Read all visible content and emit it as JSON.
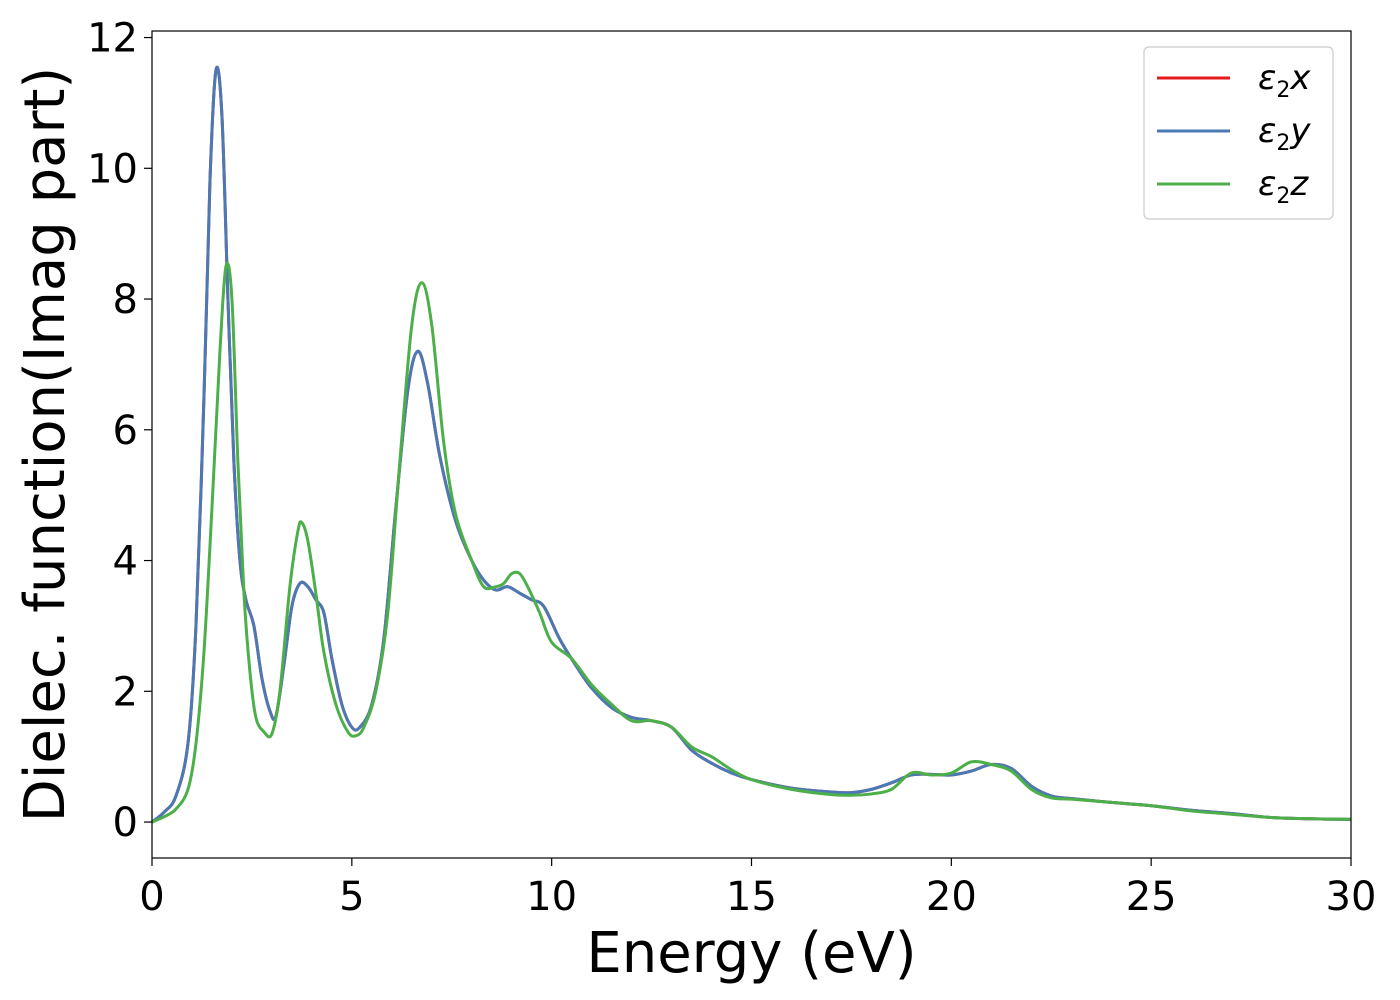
{
  "chart_data": {
    "type": "line",
    "xlabel": "Energy (eV)",
    "ylabel": "Dielec. function(Imag part)",
    "xlim": [
      0,
      30
    ],
    "ylim": [
      -0.55,
      12.1
    ],
    "xticks": [
      0,
      5,
      10,
      15,
      20,
      25,
      30
    ],
    "yticks": [
      0,
      2,
      4,
      6,
      8,
      10,
      12
    ],
    "grid": false,
    "legend_position": "top-right",
    "series": [
      {
        "name": "ε2x",
        "legend_main": "ε",
        "legend_sub": "2",
        "legend_tail": "x",
        "color": "#e41a1c",
        "points": [
          [
            0,
            0
          ],
          [
            0.3,
            0.15
          ],
          [
            0.6,
            0.4
          ],
          [
            0.9,
            1.2
          ],
          [
            1.1,
            3.0
          ],
          [
            1.3,
            6.5
          ],
          [
            1.45,
            9.8
          ],
          [
            1.6,
            11.5
          ],
          [
            1.75,
            10.8
          ],
          [
            1.9,
            8.0
          ],
          [
            2.05,
            5.5
          ],
          [
            2.2,
            4.0
          ],
          [
            2.35,
            3.4
          ],
          [
            2.55,
            3.0
          ],
          [
            2.75,
            2.2
          ],
          [
            2.95,
            1.7
          ],
          [
            3.1,
            1.62
          ],
          [
            3.3,
            2.4
          ],
          [
            3.5,
            3.3
          ],
          [
            3.7,
            3.65
          ],
          [
            3.9,
            3.6
          ],
          [
            4.1,
            3.4
          ],
          [
            4.3,
            3.2
          ],
          [
            4.5,
            2.5
          ],
          [
            4.75,
            1.8
          ],
          [
            5.0,
            1.45
          ],
          [
            5.2,
            1.45
          ],
          [
            5.5,
            1.8
          ],
          [
            5.8,
            2.8
          ],
          [
            6.1,
            4.8
          ],
          [
            6.4,
            6.6
          ],
          [
            6.65,
            7.2
          ],
          [
            6.9,
            6.7
          ],
          [
            7.2,
            5.6
          ],
          [
            7.6,
            4.6
          ],
          [
            8.0,
            4.0
          ],
          [
            8.3,
            3.7
          ],
          [
            8.6,
            3.55
          ],
          [
            8.9,
            3.6
          ],
          [
            9.2,
            3.5
          ],
          [
            9.5,
            3.4
          ],
          [
            9.8,
            3.3
          ],
          [
            10.2,
            2.8
          ],
          [
            10.6,
            2.4
          ],
          [
            11.0,
            2.05
          ],
          [
            11.5,
            1.75
          ],
          [
            12.0,
            1.6
          ],
          [
            12.5,
            1.55
          ],
          [
            13.0,
            1.45
          ],
          [
            13.5,
            1.1
          ],
          [
            14.0,
            0.9
          ],
          [
            14.5,
            0.75
          ],
          [
            15.0,
            0.65
          ],
          [
            16.0,
            0.52
          ],
          [
            17.0,
            0.46
          ],
          [
            17.5,
            0.45
          ],
          [
            18.0,
            0.5
          ],
          [
            18.5,
            0.6
          ],
          [
            19.0,
            0.72
          ],
          [
            19.5,
            0.73
          ],
          [
            20.0,
            0.72
          ],
          [
            20.5,
            0.78
          ],
          [
            21.0,
            0.88
          ],
          [
            21.5,
            0.82
          ],
          [
            22.0,
            0.55
          ],
          [
            22.5,
            0.4
          ],
          [
            23.0,
            0.36
          ],
          [
            24.0,
            0.3
          ],
          [
            25.0,
            0.25
          ],
          [
            26.0,
            0.18
          ],
          [
            27.0,
            0.13
          ],
          [
            28.0,
            0.07
          ],
          [
            29.0,
            0.05
          ],
          [
            30.0,
            0.04
          ]
        ]
      },
      {
        "name": "ε2y",
        "legend_main": "ε",
        "legend_sub": "2",
        "legend_tail": "y",
        "color": "#4a7ab5",
        "points": [
          [
            0,
            0
          ],
          [
            0.3,
            0.15
          ],
          [
            0.6,
            0.4
          ],
          [
            0.9,
            1.2
          ],
          [
            1.1,
            3.0
          ],
          [
            1.3,
            6.5
          ],
          [
            1.45,
            9.8
          ],
          [
            1.6,
            11.5
          ],
          [
            1.75,
            10.8
          ],
          [
            1.9,
            8.0
          ],
          [
            2.05,
            5.5
          ],
          [
            2.2,
            4.0
          ],
          [
            2.35,
            3.4
          ],
          [
            2.55,
            3.0
          ],
          [
            2.75,
            2.2
          ],
          [
            2.95,
            1.7
          ],
          [
            3.1,
            1.62
          ],
          [
            3.3,
            2.4
          ],
          [
            3.5,
            3.3
          ],
          [
            3.7,
            3.65
          ],
          [
            3.9,
            3.6
          ],
          [
            4.1,
            3.4
          ],
          [
            4.3,
            3.2
          ],
          [
            4.5,
            2.5
          ],
          [
            4.75,
            1.8
          ],
          [
            5.0,
            1.45
          ],
          [
            5.2,
            1.45
          ],
          [
            5.5,
            1.8
          ],
          [
            5.8,
            2.8
          ],
          [
            6.1,
            4.8
          ],
          [
            6.4,
            6.6
          ],
          [
            6.65,
            7.2
          ],
          [
            6.9,
            6.7
          ],
          [
            7.2,
            5.6
          ],
          [
            7.6,
            4.6
          ],
          [
            8.0,
            4.0
          ],
          [
            8.3,
            3.7
          ],
          [
            8.6,
            3.55
          ],
          [
            8.9,
            3.6
          ],
          [
            9.2,
            3.5
          ],
          [
            9.5,
            3.4
          ],
          [
            9.8,
            3.3
          ],
          [
            10.2,
            2.8
          ],
          [
            10.6,
            2.4
          ],
          [
            11.0,
            2.05
          ],
          [
            11.5,
            1.75
          ],
          [
            12.0,
            1.6
          ],
          [
            12.5,
            1.55
          ],
          [
            13.0,
            1.45
          ],
          [
            13.5,
            1.1
          ],
          [
            14.0,
            0.9
          ],
          [
            14.5,
            0.75
          ],
          [
            15.0,
            0.65
          ],
          [
            16.0,
            0.52
          ],
          [
            17.0,
            0.46
          ],
          [
            17.5,
            0.45
          ],
          [
            18.0,
            0.5
          ],
          [
            18.5,
            0.6
          ],
          [
            19.0,
            0.72
          ],
          [
            19.5,
            0.73
          ],
          [
            20.0,
            0.72
          ],
          [
            20.5,
            0.78
          ],
          [
            21.0,
            0.88
          ],
          [
            21.5,
            0.82
          ],
          [
            22.0,
            0.55
          ],
          [
            22.5,
            0.4
          ],
          [
            23.0,
            0.36
          ],
          [
            24.0,
            0.3
          ],
          [
            25.0,
            0.25
          ],
          [
            26.0,
            0.18
          ],
          [
            27.0,
            0.13
          ],
          [
            28.0,
            0.07
          ],
          [
            29.0,
            0.05
          ],
          [
            30.0,
            0.04
          ]
        ]
      },
      {
        "name": "ε2z",
        "legend_main": "ε",
        "legend_sub": "2",
        "legend_tail": "z",
        "color": "#4daf4a",
        "points": [
          [
            0,
            0
          ],
          [
            0.3,
            0.08
          ],
          [
            0.6,
            0.2
          ],
          [
            0.9,
            0.5
          ],
          [
            1.1,
            1.2
          ],
          [
            1.3,
            2.6
          ],
          [
            1.5,
            4.8
          ],
          [
            1.7,
            7.2
          ],
          [
            1.85,
            8.5
          ],
          [
            2.0,
            8.0
          ],
          [
            2.15,
            5.5
          ],
          [
            2.3,
            3.5
          ],
          [
            2.45,
            2.3
          ],
          [
            2.6,
            1.6
          ],
          [
            2.8,
            1.38
          ],
          [
            3.0,
            1.35
          ],
          [
            3.2,
            2.0
          ],
          [
            3.45,
            3.6
          ],
          [
            3.65,
            4.45
          ],
          [
            3.75,
            4.58
          ],
          [
            3.9,
            4.3
          ],
          [
            4.1,
            3.5
          ],
          [
            4.3,
            2.6
          ],
          [
            4.6,
            1.8
          ],
          [
            4.9,
            1.38
          ],
          [
            5.1,
            1.32
          ],
          [
            5.3,
            1.45
          ],
          [
            5.6,
            2.0
          ],
          [
            5.9,
            3.2
          ],
          [
            6.2,
            5.5
          ],
          [
            6.5,
            7.6
          ],
          [
            6.75,
            8.25
          ],
          [
            7.0,
            7.6
          ],
          [
            7.3,
            5.8
          ],
          [
            7.6,
            4.7
          ],
          [
            8.0,
            4.0
          ],
          [
            8.3,
            3.6
          ],
          [
            8.6,
            3.6
          ],
          [
            8.8,
            3.65
          ],
          [
            9.0,
            3.8
          ],
          [
            9.2,
            3.8
          ],
          [
            9.4,
            3.6
          ],
          [
            9.7,
            3.2
          ],
          [
            10.0,
            2.75
          ],
          [
            10.5,
            2.5
          ],
          [
            11.0,
            2.1
          ],
          [
            11.5,
            1.8
          ],
          [
            12.0,
            1.55
          ],
          [
            12.5,
            1.55
          ],
          [
            13.0,
            1.45
          ],
          [
            13.5,
            1.15
          ],
          [
            14.0,
            1.0
          ],
          [
            14.5,
            0.8
          ],
          [
            15.0,
            0.65
          ],
          [
            16.0,
            0.5
          ],
          [
            17.0,
            0.42
          ],
          [
            17.5,
            0.41
          ],
          [
            18.0,
            0.43
          ],
          [
            18.5,
            0.5
          ],
          [
            19.0,
            0.75
          ],
          [
            19.5,
            0.72
          ],
          [
            20.0,
            0.75
          ],
          [
            20.5,
            0.92
          ],
          [
            21.0,
            0.88
          ],
          [
            21.5,
            0.78
          ],
          [
            22.0,
            0.5
          ],
          [
            22.5,
            0.37
          ],
          [
            23.0,
            0.35
          ],
          [
            24.0,
            0.3
          ],
          [
            25.0,
            0.25
          ],
          [
            26.0,
            0.17
          ],
          [
            27.0,
            0.12
          ],
          [
            28.0,
            0.07
          ],
          [
            29.0,
            0.05
          ],
          [
            30.0,
            0.04
          ]
        ]
      }
    ]
  }
}
